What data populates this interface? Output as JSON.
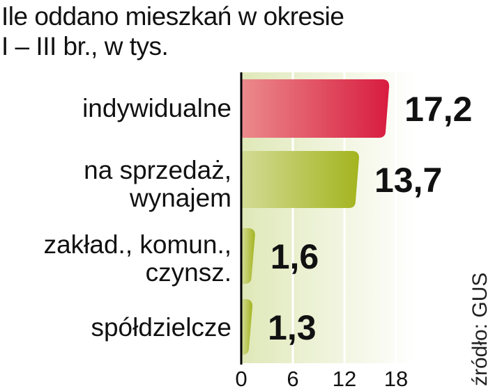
{
  "title": {
    "line1": "Ile oddano mieszkań w okresie",
    "line2": "I – III br., w tys."
  },
  "source": "źródło: GUS",
  "colors": {
    "highlight_bar": "#d81c3f",
    "highlight_bar_light": "#eb8a8c",
    "bar": "#a3b41e",
    "bar_light": "#d3db95",
    "plot_background": "#eaf0cf",
    "axis": "#000000",
    "gridline": "#ffffff"
  },
  "chart_data": {
    "type": "bar",
    "orientation": "horizontal",
    "categories": [
      [
        "indywidualne"
      ],
      [
        "na sprzedaż,",
        "wynajem"
      ],
      [
        "zakład., komun.,",
        "czynsz."
      ],
      [
        "spółdzielcze"
      ]
    ],
    "values": [
      17.2,
      13.7,
      1.6,
      1.3
    ],
    "value_labels": [
      "17,2",
      "13,7",
      "1,6",
      "1,3"
    ],
    "highlight_index": 0,
    "xlim": [
      0,
      18
    ],
    "xticks": [
      0,
      6,
      12,
      18
    ],
    "xtick_labels": [
      "0",
      "6",
      "12",
      "18"
    ],
    "grid": true
  }
}
